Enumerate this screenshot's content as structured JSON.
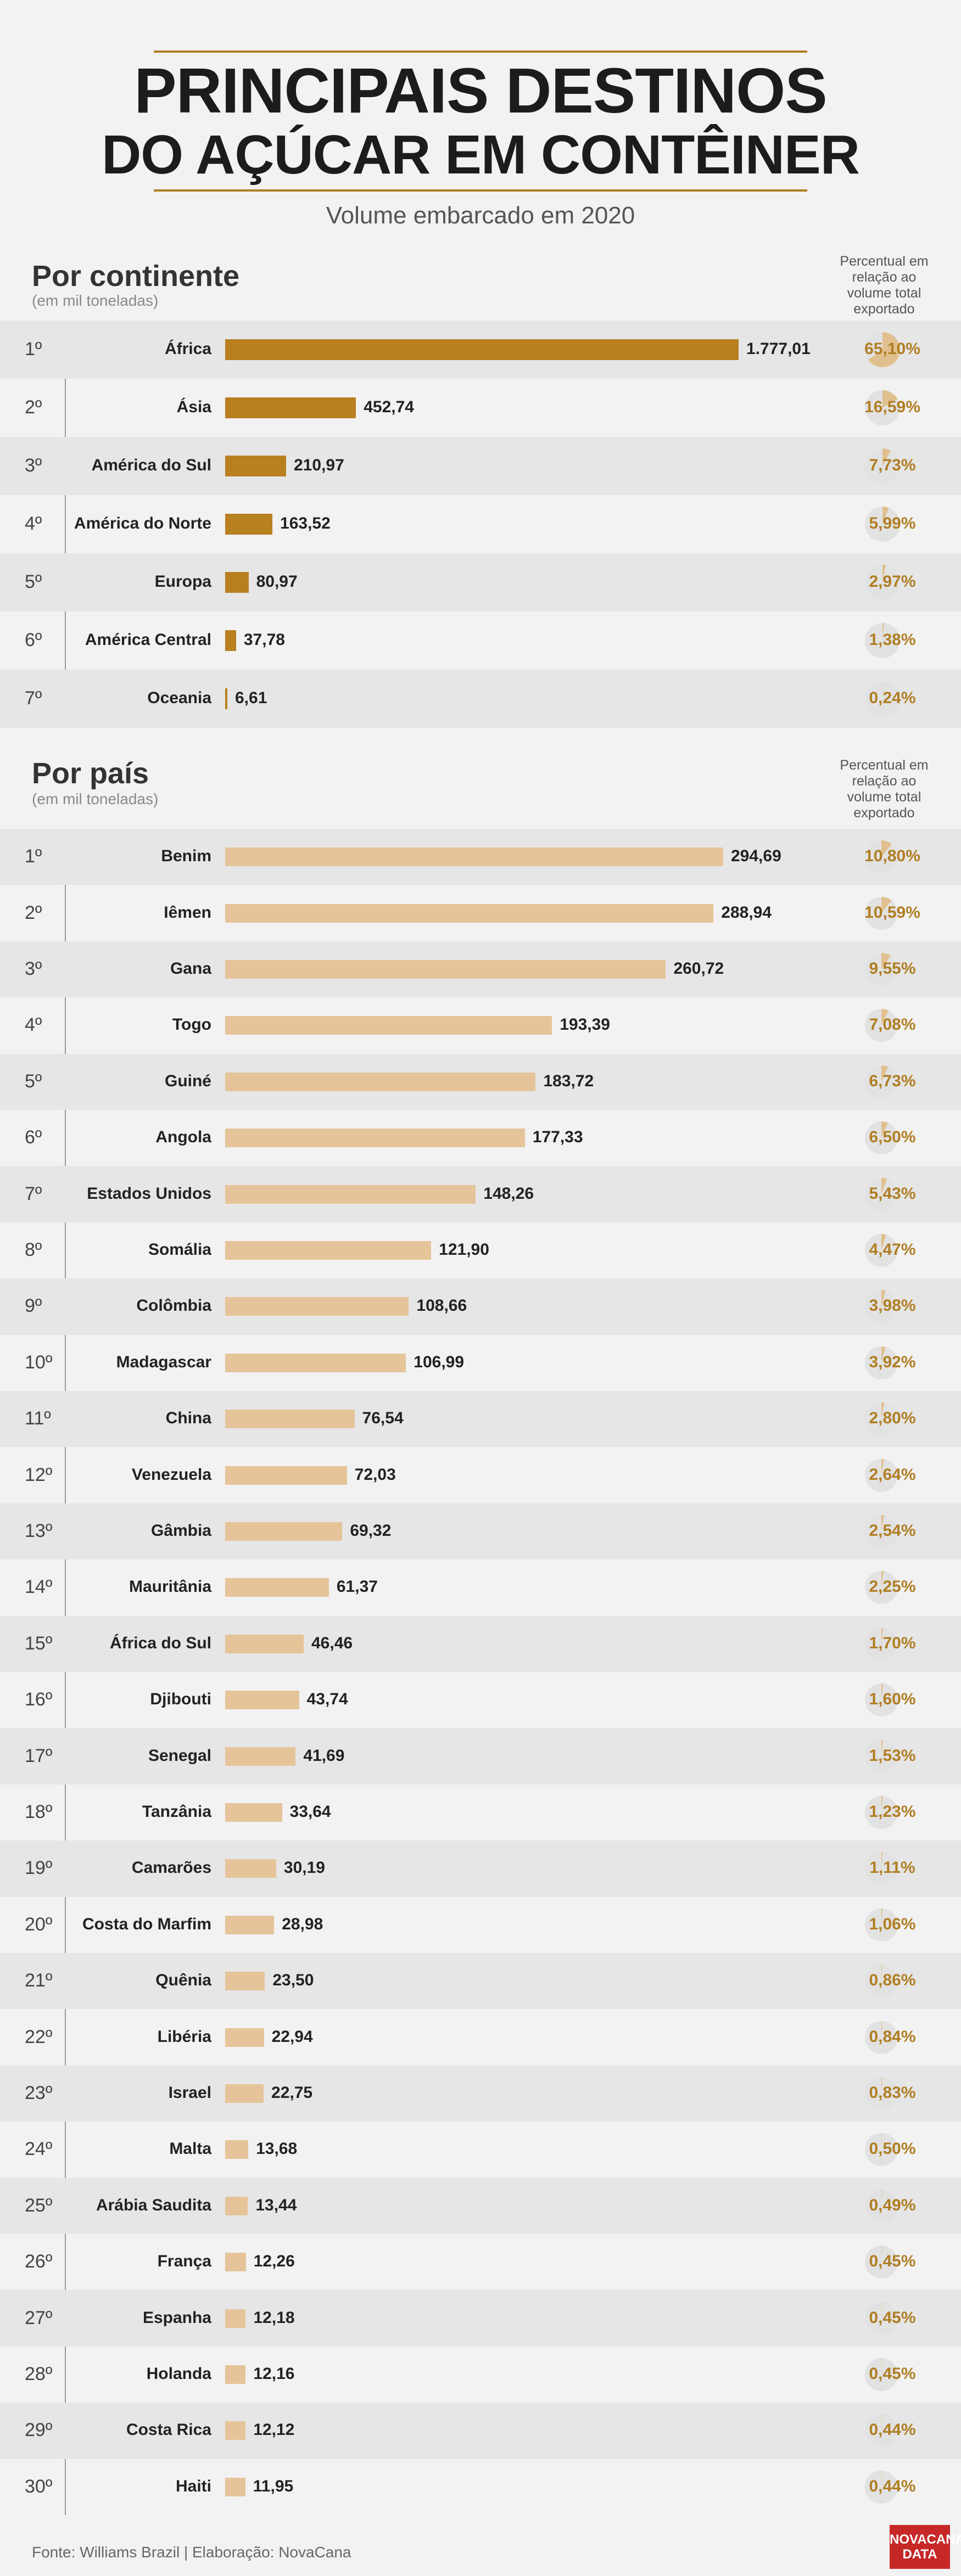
{
  "header": {
    "title_line1": "PRINCIPAIS DESTINOS",
    "title_line2": "DO AÇÚCAR EM CONTÊINER",
    "subtitle": "Volume embarcado em 2020"
  },
  "colors": {
    "continent_bar": "#b8801f",
    "country_bar": "#e6c49a",
    "percent_text": "#b07e23",
    "pie_slice": "#e0c08e",
    "pie_background": "#e2e2e2"
  },
  "chart_data": [
    {
      "type": "bar",
      "orientation": "horizontal",
      "title": "Por continente",
      "unit": "(em mil toneladas)",
      "percent_header": "Percentual em relação ao volume total exportado",
      "rows": [
        {
          "rank": "1º",
          "name": "África",
          "value": 1777.01,
          "value_label": "1.777,01",
          "percent": 65.1,
          "percent_label": "65,10%"
        },
        {
          "rank": "2º",
          "name": "Ásia",
          "value": 452.74,
          "value_label": "452,74",
          "percent": 16.59,
          "percent_label": "16,59%"
        },
        {
          "rank": "3º",
          "name": "América do Sul",
          "value": 210.97,
          "value_label": "210,97",
          "percent": 7.73,
          "percent_label": "7,73%"
        },
        {
          "rank": "4º",
          "name": "América do Norte",
          "value": 163.52,
          "value_label": "163,52",
          "percent": 5.99,
          "percent_label": "5,99%"
        },
        {
          "rank": "5º",
          "name": "Europa",
          "value": 80.97,
          "value_label": "80,97",
          "percent": 2.97,
          "percent_label": "2,97%"
        },
        {
          "rank": "6º",
          "name": "América Central",
          "value": 37.78,
          "value_label": "37,78",
          "percent": 1.38,
          "percent_label": "1,38%"
        },
        {
          "rank": "7º",
          "name": "Oceania",
          "value": 6.61,
          "value_label": "6,61",
          "percent": 0.24,
          "percent_label": "0,24%"
        }
      ]
    },
    {
      "type": "bar",
      "orientation": "horizontal",
      "title": "Por país",
      "unit": "(em mil toneladas)",
      "percent_header": "Percentual em relação ao volume total exportado",
      "rows": [
        {
          "rank": "1º",
          "name": "Benim",
          "value": 294.69,
          "value_label": "294,69",
          "percent": 10.8,
          "percent_label": "10,80%"
        },
        {
          "rank": "2º",
          "name": "Iêmen",
          "value": 288.94,
          "value_label": "288,94",
          "percent": 10.59,
          "percent_label": "10,59%"
        },
        {
          "rank": "3º",
          "name": "Gana",
          "value": 260.72,
          "value_label": "260,72",
          "percent": 9.55,
          "percent_label": "9,55%"
        },
        {
          "rank": "4º",
          "name": "Togo",
          "value": 193.39,
          "value_label": "193,39",
          "percent": 7.08,
          "percent_label": "7,08%"
        },
        {
          "rank": "5º",
          "name": "Guiné",
          "value": 183.72,
          "value_label": "183,72",
          "percent": 6.73,
          "percent_label": "6,73%"
        },
        {
          "rank": "6º",
          "name": "Angola",
          "value": 177.33,
          "value_label": "177,33",
          "percent": 6.5,
          "percent_label": "6,50%"
        },
        {
          "rank": "7º",
          "name": "Estados Unidos",
          "value": 148.26,
          "value_label": "148,26",
          "percent": 5.43,
          "percent_label": "5,43%"
        },
        {
          "rank": "8º",
          "name": "Somália",
          "value": 121.9,
          "value_label": "121,90",
          "percent": 4.47,
          "percent_label": "4,47%"
        },
        {
          "rank": "9º",
          "name": "Colômbia",
          "value": 108.66,
          "value_label": "108,66",
          "percent": 3.98,
          "percent_label": "3,98%"
        },
        {
          "rank": "10º",
          "name": "Madagascar",
          "value": 106.99,
          "value_label": "106,99",
          "percent": 3.92,
          "percent_label": "3,92%"
        },
        {
          "rank": "11º",
          "name": "China",
          "value": 76.54,
          "value_label": "76,54",
          "percent": 2.8,
          "percent_label": "2,80%"
        },
        {
          "rank": "12º",
          "name": "Venezuela",
          "value": 72.03,
          "value_label": "72,03",
          "percent": 2.64,
          "percent_label": "2,64%"
        },
        {
          "rank": "13º",
          "name": "Gâmbia",
          "value": 69.32,
          "value_label": "69,32",
          "percent": 2.54,
          "percent_label": "2,54%"
        },
        {
          "rank": "14º",
          "name": "Mauritânia",
          "value": 61.37,
          "value_label": "61,37",
          "percent": 2.25,
          "percent_label": "2,25%"
        },
        {
          "rank": "15º",
          "name": "África do Sul",
          "value": 46.46,
          "value_label": "46,46",
          "percent": 1.7,
          "percent_label": "1,70%"
        },
        {
          "rank": "16º",
          "name": "Djibouti",
          "value": 43.74,
          "value_label": "43,74",
          "percent": 1.6,
          "percent_label": "1,60%"
        },
        {
          "rank": "17º",
          "name": "Senegal",
          "value": 41.69,
          "value_label": "41,69",
          "percent": 1.53,
          "percent_label": "1,53%"
        },
        {
          "rank": "18º",
          "name": "Tanzânia",
          "value": 33.64,
          "value_label": "33,64",
          "percent": 1.23,
          "percent_label": "1,23%"
        },
        {
          "rank": "19º",
          "name": "Camarões",
          "value": 30.19,
          "value_label": "30,19",
          "percent": 1.11,
          "percent_label": "1,11%"
        },
        {
          "rank": "20º",
          "name": "Costa do Marfim",
          "value": 28.98,
          "value_label": "28,98",
          "percent": 1.06,
          "percent_label": "1,06%"
        },
        {
          "rank": "21º",
          "name": "Quênia",
          "value": 23.5,
          "value_label": "23,50",
          "percent": 0.86,
          "percent_label": "0,86%"
        },
        {
          "rank": "22º",
          "name": "Libéria",
          "value": 22.94,
          "value_label": "22,94",
          "percent": 0.84,
          "percent_label": "0,84%"
        },
        {
          "rank": "23º",
          "name": "Israel",
          "value": 22.75,
          "value_label": "22,75",
          "percent": 0.83,
          "percent_label": "0,83%"
        },
        {
          "rank": "24º",
          "name": "Malta",
          "value": 13.68,
          "value_label": "13,68",
          "percent": 0.5,
          "percent_label": "0,50%"
        },
        {
          "rank": "25º",
          "name": "Arábia Saudita",
          "value": 13.44,
          "value_label": "13,44",
          "percent": 0.49,
          "percent_label": "0,49%"
        },
        {
          "rank": "26º",
          "name": "França",
          "value": 12.26,
          "value_label": "12,26",
          "percent": 0.45,
          "percent_label": "0,45%"
        },
        {
          "rank": "27º",
          "name": "Espanha",
          "value": 12.18,
          "value_label": "12,18",
          "percent": 0.45,
          "percent_label": "0,45%"
        },
        {
          "rank": "28º",
          "name": "Holanda",
          "value": 12.16,
          "value_label": "12,16",
          "percent": 0.45,
          "percent_label": "0,45%"
        },
        {
          "rank": "29º",
          "name": "Costa Rica",
          "value": 12.12,
          "value_label": "12,12",
          "percent": 0.44,
          "percent_label": "0,44%"
        },
        {
          "rank": "30º",
          "name": "Haiti",
          "value": 11.95,
          "value_label": "11,95",
          "percent": 0.44,
          "percent_label": "0,44%"
        }
      ]
    }
  ],
  "footer": {
    "source": "Fonte: Williams Brazil | Elaboração: NovaCana",
    "logo_line1": "NOVACANA",
    "logo_line2": "DATA"
  }
}
